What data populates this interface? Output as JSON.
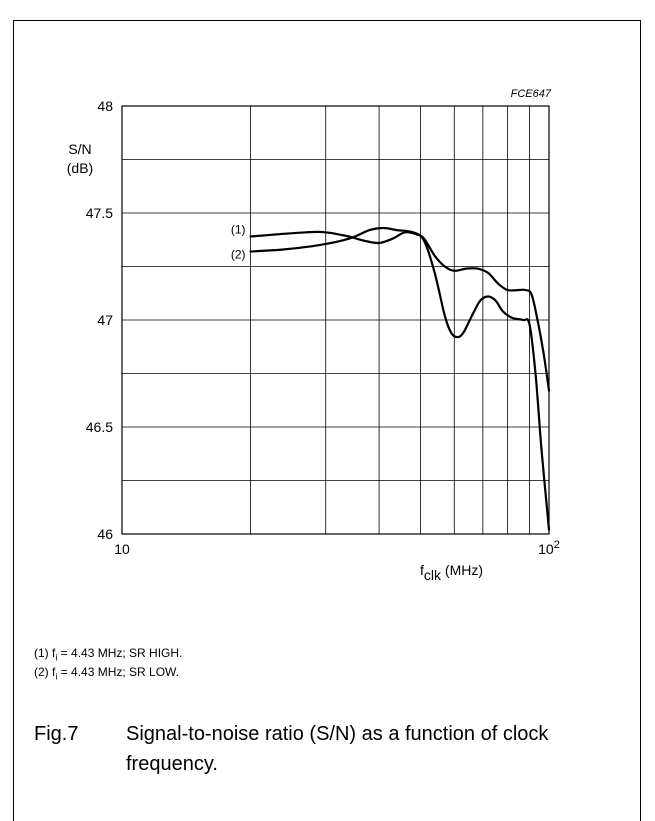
{
  "chart_data": {
    "type": "line",
    "code": "FCE647",
    "ylabel_line1": "S/N",
    "ylabel_line2": "(dB)",
    "xlabel_main": "f",
    "xlabel_sub": "clk",
    "xlabel_unit": " (MHz)",
    "xscale": "log",
    "xlim": [
      10,
      100
    ],
    "ylim": [
      46,
      48
    ],
    "x_tick_labels": [
      {
        "value": 10,
        "base": "10",
        "sup": ""
      },
      {
        "value": 100,
        "base": "10",
        "sup": "2"
      }
    ],
    "y_ticks": [
      {
        "value": 48,
        "label": "48"
      },
      {
        "value": 47.5,
        "label": "47.5"
      },
      {
        "value": 47,
        "label": "47"
      },
      {
        "value": 46.5,
        "label": "46.5"
      },
      {
        "value": 46,
        "label": "46"
      }
    ],
    "series": [
      {
        "name": "(1)",
        "points": [
          [
            20,
            47.39
          ],
          [
            23,
            47.4
          ],
          [
            27,
            47.41
          ],
          [
            30,
            47.41
          ],
          [
            34,
            47.39
          ],
          [
            37,
            47.37
          ],
          [
            40,
            47.36
          ],
          [
            43,
            47.38
          ],
          [
            46,
            47.41
          ],
          [
            49,
            47.4
          ],
          [
            51,
            47.38
          ],
          [
            54,
            47.3
          ],
          [
            57,
            47.25
          ],
          [
            60,
            47.23
          ],
          [
            64,
            47.24
          ],
          [
            68,
            47.24
          ],
          [
            72,
            47.22
          ],
          [
            76,
            47.17
          ],
          [
            80,
            47.14
          ],
          [
            85,
            47.14
          ],
          [
            88,
            47.14
          ],
          [
            91,
            47.12
          ],
          [
            94,
            47.0
          ],
          [
            97,
            46.85
          ],
          [
            100,
            46.67
          ]
        ]
      },
      {
        "name": "(2)",
        "points": [
          [
            20,
            47.32
          ],
          [
            24,
            47.33
          ],
          [
            29,
            47.35
          ],
          [
            34,
            47.38
          ],
          [
            38,
            47.42
          ],
          [
            41,
            47.43
          ],
          [
            44,
            47.42
          ],
          [
            48,
            47.41
          ],
          [
            51,
            47.37
          ],
          [
            54,
            47.22
          ],
          [
            57,
            47.02
          ],
          [
            59,
            46.94
          ],
          [
            61,
            46.92
          ],
          [
            63,
            46.94
          ],
          [
            66,
            47.02
          ],
          [
            69,
            47.09
          ],
          [
            72,
            47.11
          ],
          [
            75,
            47.09
          ],
          [
            78,
            47.04
          ],
          [
            82,
            47.01
          ],
          [
            87,
            47.0
          ],
          [
            90,
            46.98
          ],
          [
            93,
            46.75
          ],
          [
            96,
            46.4
          ],
          [
            100,
            46.02
          ]
        ]
      }
    ],
    "grid": true
  },
  "notes": [
    {
      "prefix": "(1) f",
      "sub": "i",
      "rest": " = 4.43 MHz; SR HIGH."
    },
    {
      "prefix": "(2) f",
      "sub": "i",
      "rest": " = 4.43 MHz; SR LOW."
    }
  ],
  "caption": {
    "fig": "Fig.7",
    "title": "Signal-to-noise ratio (S/N) as a function of clock frequency."
  }
}
